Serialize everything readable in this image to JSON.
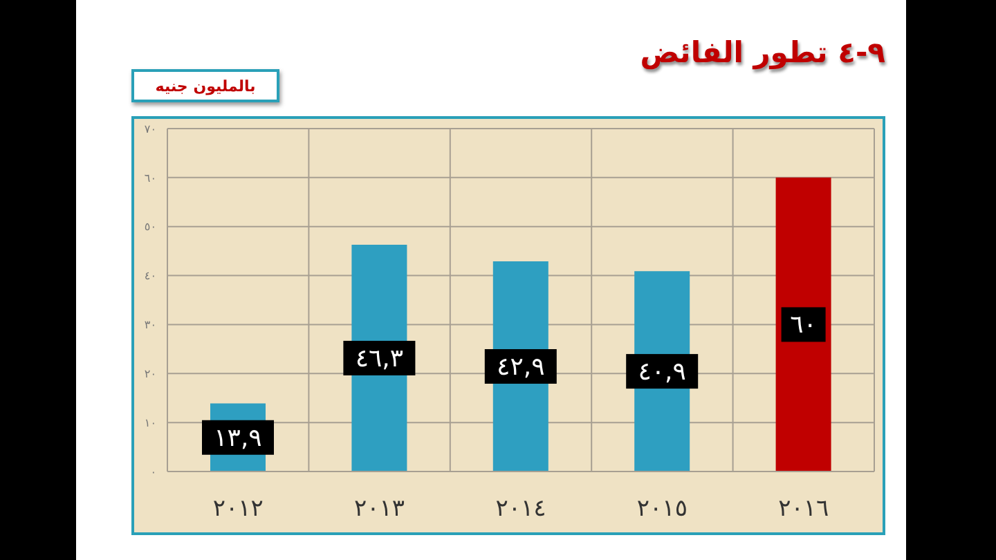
{
  "chart_data": {
    "type": "bar",
    "title": "٩-٤ تطور الفائض",
    "subtitle": "بالمليون جنيه",
    "categories": [
      "٢٠١٢",
      "٢٠١٣",
      "٢٠١٤",
      "٢٠١٥",
      "٢٠١٦"
    ],
    "values": [
      13.9,
      46.3,
      42.9,
      40.9,
      60
    ],
    "colors": [
      "#2e9fc1",
      "#2e9fc1",
      "#2e9fc1",
      "#2e9fc1",
      "#c00000"
    ],
    "value_labels": [
      "١٣,٩",
      "٤٦,٣",
      "٤٢,٩",
      "٤٠,٩",
      "٦٠"
    ],
    "ylim": [
      0,
      70
    ],
    "yticks": [
      {
        "value": 0,
        "label": "٠"
      },
      {
        "value": 10,
        "label": "١٠"
      },
      {
        "value": 20,
        "label": "٢٠"
      },
      {
        "value": 30,
        "label": "٣٠"
      },
      {
        "value": 40,
        "label": "٤٠"
      },
      {
        "value": 50,
        "label": "٥٠"
      },
      {
        "value": 60,
        "label": "٦٠"
      },
      {
        "value": 70,
        "label": "٧٠"
      }
    ],
    "grid": true
  }
}
